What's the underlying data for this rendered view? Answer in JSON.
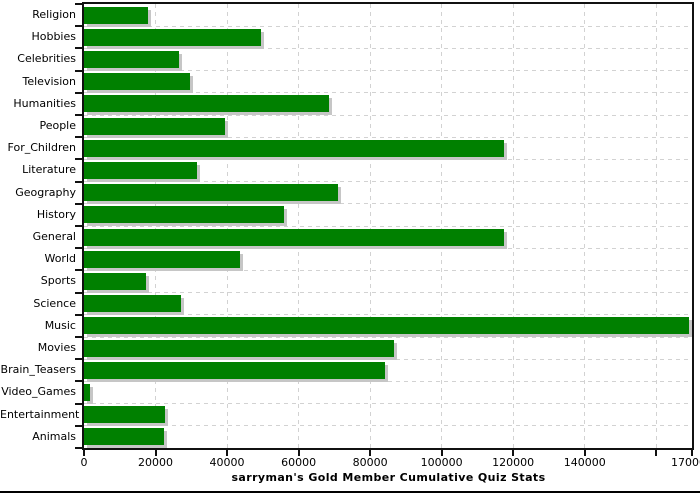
{
  "chart_data": {
    "type": "bar",
    "orientation": "horizontal",
    "title": "sarryman's Gold Member Cumulative Quiz Stats",
    "categories": [
      "Religion",
      "Hobbies",
      "Celebrities",
      "Television",
      "Humanities",
      "People",
      "For_Children",
      "Literature",
      "Geography",
      "History",
      "General",
      "World",
      "Sports",
      "Science",
      "Music",
      "Movies",
      "Brain_Teasers",
      "Video_Games",
      "Entertainment",
      "Animals"
    ],
    "values": [
      17900,
      49600,
      26600,
      29500,
      68600,
      39500,
      117300,
      31700,
      71100,
      55900,
      117500,
      43500,
      17200,
      27000,
      169300,
      86800,
      84300,
      1600,
      22600,
      22300
    ],
    "xlim": [
      0,
      170000
    ],
    "x_ticks": [
      0,
      20000,
      40000,
      60000,
      80000,
      100000,
      120000,
      140000,
      160000,
      170000
    ],
    "x_tick_labels": [
      "0",
      "20000",
      "40000",
      "60000",
      "80000",
      "100000",
      "120000",
      "140000",
      "",
      "170000"
    ],
    "grid": "dashed",
    "legend": "none",
    "bar_color": "#008000",
    "shadow_color": "#c6c6c6",
    "grid_color": "#d2d2d2",
    "axis_color": "#111111",
    "text_color": "#000000",
    "background_color": "#ffffff"
  }
}
